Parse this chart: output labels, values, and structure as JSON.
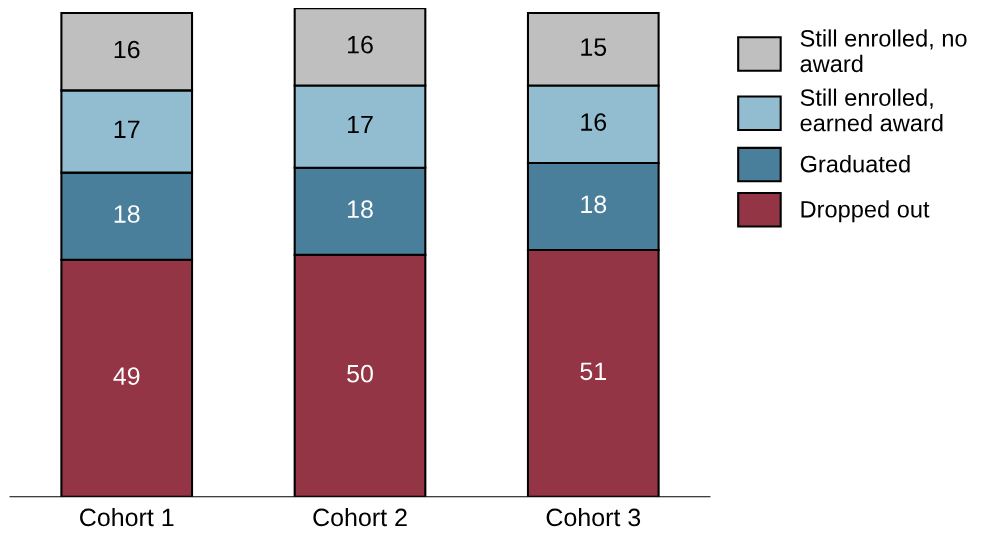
{
  "chart_data": {
    "type": "bar",
    "stacked": true,
    "data_labels": true,
    "legend": "top right",
    "tick_labels": "x",
    "grid": false,
    "categories": [
      "Cohort 1",
      "Cohort 2",
      "Cohort 3"
    ],
    "series": [
      {
        "name": "Dropped out",
        "color": "#943545",
        "values": [
          49,
          50,
          51
        ]
      },
      {
        "name": "Graduated",
        "color": "#4a7f9c",
        "values": [
          18,
          18,
          18
        ]
      },
      {
        "name": "Still enrolled, earned award",
        "color": "#92bcd0",
        "values": [
          17,
          17,
          16
        ]
      },
      {
        "name": "Still enrolled, no award",
        "color": "#bfbfbf",
        "values": [
          16,
          16,
          15
        ]
      }
    ]
  }
}
